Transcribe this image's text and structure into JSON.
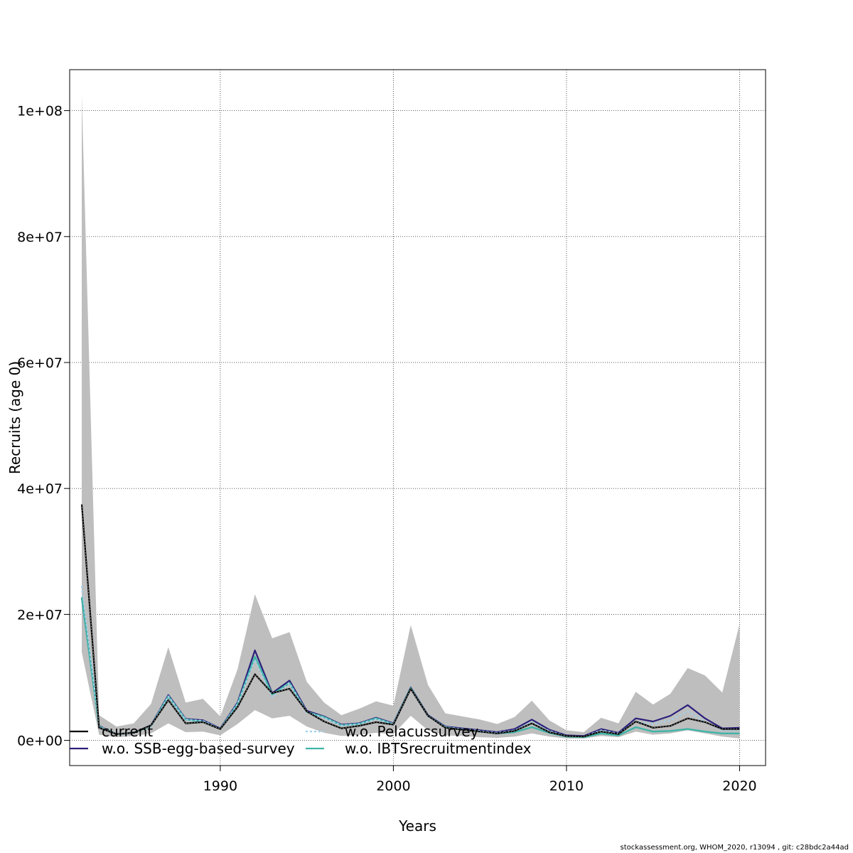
{
  "chart_data": {
    "type": "line",
    "title": "",
    "xlabel": "Years",
    "ylabel": "Recruits (age 0)",
    "xlim": [
      1981.3,
      2021.5
    ],
    "ylim": [
      -4000000,
      106500000
    ],
    "x_ticks": [
      1990,
      2000,
      2010,
      2020
    ],
    "x_tick_labels": [
      "1990",
      "2000",
      "2010",
      "2020"
    ],
    "y_ticks": [
      0,
      20000000,
      40000000,
      60000000,
      80000000,
      100000000
    ],
    "y_tick_labels": [
      "0e+00",
      "2e+07",
      "4e+07",
      "6e+07",
      "8e+07",
      "1e+08"
    ],
    "grid": true,
    "legend_position": "bottom-left",
    "x": [
      1982,
      1983,
      1984,
      1985,
      1986,
      1987,
      1988,
      1989,
      1990,
      1991,
      1992,
      1993,
      1994,
      1995,
      1996,
      1997,
      1998,
      1999,
      2000,
      2001,
      2002,
      2003,
      2004,
      2005,
      2006,
      2007,
      2008,
      2009,
      2010,
      2011,
      2012,
      2013,
      2014,
      2015,
      2016,
      2017,
      2018,
      2019,
      2020
    ],
    "confidence_band": {
      "color": "#bebebe",
      "upper": [
        102500000,
        4000000,
        2200000,
        2700000,
        5800000,
        14800000,
        6000000,
        6600000,
        3800000,
        11300000,
        23200000,
        16200000,
        17200000,
        9300000,
        6000000,
        4000000,
        5000000,
        6200000,
        5500000,
        18300000,
        8800000,
        4300000,
        3800000,
        3300000,
        2600000,
        3700000,
        6300000,
        3200000,
        1600000,
        1300000,
        3600000,
        2700000,
        7700000,
        5700000,
        7400000,
        11500000,
        10300000,
        7600000,
        18500000
      ],
      "lower": [
        14000000,
        900000,
        500000,
        700000,
        1100000,
        2700000,
        1300000,
        1400000,
        800000,
        2600000,
        4800000,
        3500000,
        3900000,
        2200000,
        1200000,
        700000,
        900000,
        1200000,
        1000000,
        3900000,
        1600000,
        800000,
        700000,
        500000,
        400000,
        600000,
        1100000,
        600000,
        300000,
        300000,
        700000,
        500000,
        1400000,
        900000,
        1100000,
        1600000,
        1100000,
        600000,
        300000
      ]
    },
    "series": [
      {
        "name": "current",
        "color": "#000000",
        "dash": "solid",
        "width": 2.2,
        "values": [
          37500000,
          2000000,
          1000000,
          1200000,
          2400000,
          6400000,
          2700000,
          2900000,
          1800000,
          5300000,
          10500000,
          7500000,
          8200000,
          4600000,
          3000000,
          1900000,
          2300000,
          2900000,
          2500000,
          8200000,
          3900000,
          2000000,
          1700000,
          1400000,
          1100000,
          1500000,
          2700000,
          1300000,
          700000,
          600000,
          1400000,
          1000000,
          3000000,
          2000000,
          2300000,
          3500000,
          2900000,
          1800000,
          1800000
        ]
      },
      {
        "name": "w.o. SSB-egg-based-survey",
        "color": "#2a1f7a",
        "dash": "solid",
        "width": 2.2,
        "values": [
          22600000,
          2300000,
          1000000,
          1200000,
          2400000,
          7200000,
          3400000,
          3200000,
          1900000,
          6000000,
          14300000,
          7500000,
          9500000,
          4700000,
          3800000,
          2500000,
          2700000,
          3600000,
          2700000,
          8400000,
          4000000,
          2200000,
          1900000,
          1600000,
          1300000,
          1800000,
          3300000,
          1700000,
          800000,
          700000,
          1800000,
          1200000,
          3500000,
          3000000,
          3900000,
          5600000,
          3500000,
          1900000,
          2000000
        ]
      },
      {
        "name": "w.o. Pelacussurvey",
        "color": "#9fd0ea",
        "dash": "3,3",
        "width": 2.2,
        "values": [
          24500000,
          2200000,
          1000000,
          1200000,
          2300000,
          7000000,
          3300000,
          3100000,
          1800000,
          5800000,
          12800000,
          6900000,
          9100000,
          4500000,
          3600000,
          2400000,
          2600000,
          3400000,
          2600000,
          8200000,
          3900000,
          2100000,
          1800000,
          1500000,
          1200000,
          1600000,
          2900000,
          1500000,
          700000,
          600000,
          1600000,
          1100000,
          3000000,
          2600000,
          3200000,
          4600000,
          3000000,
          1600000,
          1600000
        ]
      },
      {
        "name": "w.o. IBTSrecruitmentindex",
        "color": "#3fb5a7",
        "dash": "solid",
        "width": 2.4,
        "values": [
          22700000,
          2200000,
          1000000,
          1200000,
          2300000,
          7000000,
          3300000,
          3000000,
          1800000,
          5800000,
          13300000,
          7300000,
          9100000,
          4500000,
          3700000,
          2400000,
          2600000,
          3500000,
          2600000,
          8300000,
          3900000,
          2100000,
          1700000,
          1400000,
          1100000,
          1300000,
          2100000,
          1200000,
          600000,
          500000,
          1100000,
          800000,
          2100000,
          1400000,
          1500000,
          1800000,
          1400000,
          1100000,
          1100000
        ]
      }
    ]
  },
  "legend": {
    "items": [
      {
        "label": "current",
        "color": "#000000",
        "dash": "solid"
      },
      {
        "label": "w.o. SSB-egg-based-survey",
        "color": "#2a1f7a",
        "dash": "solid"
      },
      {
        "label": "w.o. Pelacussurvey",
        "color": "#9fd0ea",
        "dash": "3,3"
      },
      {
        "label": "w.o. IBTSrecruitmentindex",
        "color": "#3fb5a7",
        "dash": "solid"
      }
    ]
  },
  "footer": {
    "text": "stockassessment.org, WHOM_2020, r13094 , git: c28bdc2a44ad"
  }
}
